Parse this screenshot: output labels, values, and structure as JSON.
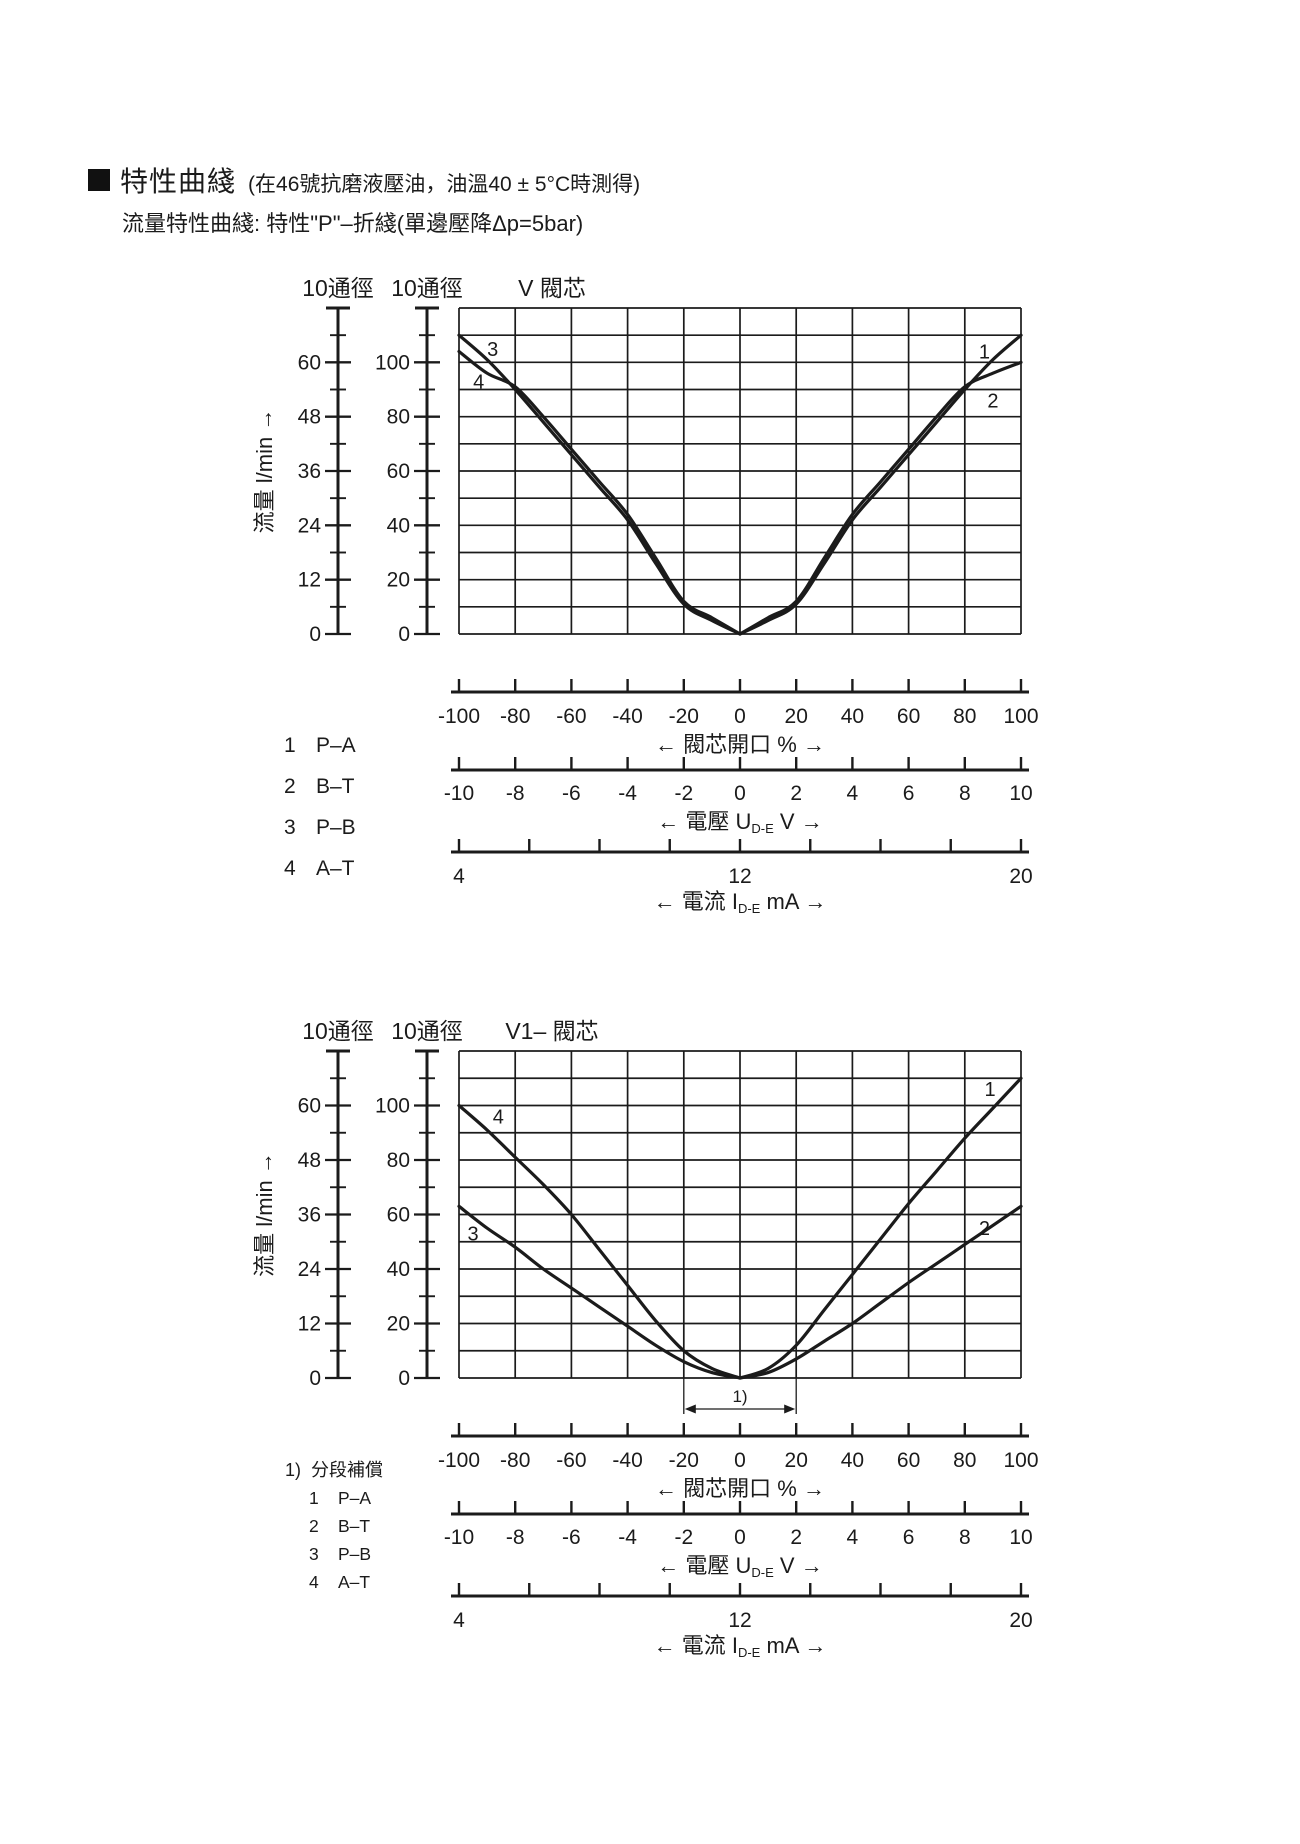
{
  "page": {
    "title": "特性曲綫",
    "title_note": "(在46號抗磨液壓油，油溫40 ± 5°C時測得)",
    "subtitle": "流量特性曲綫: 特性\"P\"–折綫(單邊壓降Δp=5bar)"
  },
  "ink_color": "#1b1b1b",
  "chart_data": [
    {
      "type": "line",
      "title": "V 閥芯",
      "ylabel": "流量 l/min →",
      "scales": [
        {
          "header": "10通徑",
          "max": 60,
          "label_step": 12,
          "minor_step": 6,
          "top": 72,
          "labels": [
            0,
            12,
            24,
            36,
            48,
            60
          ]
        },
        {
          "header": "10通徑",
          "max": 100,
          "label_step": 20,
          "minor_step": 10,
          "top": 120,
          "labels": [
            0,
            20,
            40,
            60,
            80,
            100
          ]
        }
      ],
      "grid": {
        "x_min": -100,
        "x_max": 100,
        "x_step": 20,
        "y_min": 0,
        "y_max": 120,
        "y_step": 10
      },
      "series": [
        {
          "name": "1",
          "route": "P–A",
          "label_at": [
            87,
            104
          ],
          "points": [
            [
              0,
              0
            ],
            [
              10,
              5
            ],
            [
              20,
              11
            ],
            [
              30,
              26
            ],
            [
              40,
              42
            ],
            [
              50,
              54
            ],
            [
              60,
              66
            ],
            [
              70,
              78
            ],
            [
              80,
              90
            ],
            [
              90,
              101
            ],
            [
              100,
              110
            ]
          ]
        },
        {
          "name": "2",
          "route": "B–T",
          "label_at": [
            90,
            86
          ],
          "points": [
            [
              0,
              0
            ],
            [
              10,
              6
            ],
            [
              20,
              12
            ],
            [
              30,
              28
            ],
            [
              40,
              44
            ],
            [
              50,
              56
            ],
            [
              60,
              68
            ],
            [
              70,
              80
            ],
            [
              80,
              91
            ],
            [
              90,
              96
            ],
            [
              100,
              100
            ]
          ]
        },
        {
          "name": "3",
          "route": "P–B",
          "label_at": [
            -88,
            105
          ],
          "points": [
            [
              -100,
              110
            ],
            [
              -90,
              101
            ],
            [
              -80,
              90
            ],
            [
              -70,
              78
            ],
            [
              -60,
              66
            ],
            [
              -50,
              54
            ],
            [
              -40,
              42
            ],
            [
              -30,
              26
            ],
            [
              -20,
              11
            ],
            [
              -10,
              5
            ],
            [
              0,
              0
            ]
          ]
        },
        {
          "name": "4",
          "route": "A–T",
          "label_at": [
            -93,
            93
          ],
          "points": [
            [
              -100,
              104
            ],
            [
              -90,
              96
            ],
            [
              -80,
              91
            ],
            [
              -70,
              80
            ],
            [
              -60,
              68
            ],
            [
              -50,
              56
            ],
            [
              -40,
              44
            ],
            [
              -30,
              28
            ],
            [
              -20,
              12
            ],
            [
              -10,
              6
            ],
            [
              0,
              0
            ]
          ]
        }
      ],
      "axes": [
        {
          "span": [
            -100,
            100
          ],
          "ticks": [
            -100,
            -80,
            -60,
            -40,
            -20,
            0,
            20,
            40,
            60,
            80,
            100
          ],
          "labels": [
            "-100",
            "-80",
            "-60",
            "-40",
            "-20",
            "0",
            "20",
            "40",
            "60",
            "80",
            "100"
          ],
          "title": {
            "pre": "← 閥芯開口 % →",
            "sub": "",
            "post": ""
          }
        },
        {
          "span": [
            -10,
            10
          ],
          "ticks": [
            -10,
            -8,
            -6,
            -4,
            -2,
            0,
            2,
            4,
            6,
            8,
            10
          ],
          "labels": [
            "-10",
            "-8",
            "-6",
            "-4",
            "-2",
            "0",
            "2",
            "4",
            "6",
            "8",
            "10"
          ],
          "title": {
            "pre": "← 電壓 U",
            "sub": "D-E",
            "post": " V →"
          }
        },
        {
          "span": [
            4,
            20
          ],
          "ticks": [
            4,
            6,
            8,
            10,
            12,
            14,
            16,
            18,
            20
          ],
          "labels": [
            "4",
            "",
            "",
            "",
            "12",
            "",
            "",
            "",
            "20"
          ],
          "title": {
            "pre": "← 電流 I",
            "sub": "D-E",
            "post": " mA →"
          }
        }
      ],
      "legend": [
        {
          "num": "1",
          "route": "P–A"
        },
        {
          "num": "2",
          "route": "B–T"
        },
        {
          "num": "3",
          "route": "P–B"
        },
        {
          "num": "4",
          "route": "A–T"
        }
      ]
    },
    {
      "type": "line",
      "title": "V1– 閥芯",
      "ylabel": "流量 l/min →",
      "scales": [
        {
          "header": "10通徑",
          "max": 60,
          "label_step": 12,
          "minor_step": 6,
          "top": 72,
          "labels": [
            0,
            12,
            24,
            36,
            48,
            60
          ]
        },
        {
          "header": "10通徑",
          "max": 100,
          "label_step": 20,
          "minor_step": 10,
          "top": 120,
          "labels": [
            0,
            20,
            40,
            60,
            80,
            100
          ]
        }
      ],
      "grid": {
        "x_min": -100,
        "x_max": 100,
        "x_step": 20,
        "y_min": 0,
        "y_max": 120,
        "y_step": 10
      },
      "series": [
        {
          "name": "1",
          "route": "P–A",
          "label_at": [
            89,
            106
          ],
          "points": [
            [
              0,
              0
            ],
            [
              10,
              3.5
            ],
            [
              20,
              12
            ],
            [
              30,
              25
            ],
            [
              40,
              38
            ],
            [
              50,
              51
            ],
            [
              60,
              64
            ],
            [
              70,
              76
            ],
            [
              80,
              88
            ],
            [
              90,
              99
            ],
            [
              100,
              110
            ]
          ]
        },
        {
          "name": "2",
          "route": "B–T",
          "label_at": [
            87,
            55
          ],
          "points": [
            [
              0,
              0
            ],
            [
              10,
              2
            ],
            [
              20,
              7
            ],
            [
              30,
              13.5
            ],
            [
              40,
              20
            ],
            [
              50,
              27.5
            ],
            [
              60,
              35
            ],
            [
              70,
              42
            ],
            [
              80,
              49
            ],
            [
              90,
              56
            ],
            [
              100,
              63
            ]
          ]
        },
        {
          "name": "3",
          "route": "P–B",
          "label_at": [
            -95,
            53
          ],
          "points": [
            [
              -100,
              63
            ],
            [
              -90,
              55
            ],
            [
              -80,
              48
            ],
            [
              -70,
              40
            ],
            [
              -60,
              33
            ],
            [
              -50,
              26
            ],
            [
              -40,
              19
            ],
            [
              -30,
              12
            ],
            [
              -20,
              6
            ],
            [
              -10,
              2
            ],
            [
              0,
              0
            ]
          ]
        },
        {
          "name": "4",
          "route": "A–T",
          "label_at": [
            -86,
            96
          ],
          "points": [
            [
              -100,
              100
            ],
            [
              -90,
              91
            ],
            [
              -80,
              81
            ],
            [
              -70,
              71
            ],
            [
              -60,
              60
            ],
            [
              -50,
              47
            ],
            [
              -40,
              34
            ],
            [
              -30,
              21
            ],
            [
              -20,
              10
            ],
            [
              -10,
              3.5
            ],
            [
              0,
              0
            ]
          ]
        }
      ],
      "axes": [
        {
          "span": [
            -100,
            100
          ],
          "ticks": [
            -100,
            -80,
            -60,
            -40,
            -20,
            0,
            20,
            40,
            60,
            80,
            100
          ],
          "labels": [
            "-100",
            "-80",
            "-60",
            "-40",
            "-20",
            "0",
            "20",
            "40",
            "60",
            "80",
            "100"
          ],
          "title": {
            "pre": "← 閥芯開口 % →",
            "sub": "",
            "post": ""
          }
        },
        {
          "span": [
            -10,
            10
          ],
          "ticks": [
            -10,
            -8,
            -6,
            -4,
            -2,
            0,
            2,
            4,
            6,
            8,
            10
          ],
          "labels": [
            "-10",
            "-8",
            "-6",
            "-4",
            "-2",
            "0",
            "2",
            "4",
            "6",
            "8",
            "10"
          ],
          "title": {
            "pre": "← 電壓 U",
            "sub": "D-E",
            "post": " V →"
          }
        },
        {
          "span": [
            4,
            20
          ],
          "ticks": [
            4,
            6,
            8,
            10,
            12,
            14,
            16,
            18,
            20
          ],
          "labels": [
            "4",
            "",
            "",
            "",
            "12",
            "",
            "",
            "",
            "20"
          ],
          "title": {
            "pre": "← 電流 I",
            "sub": "D-E",
            "post": " mA →"
          }
        }
      ],
      "footnote": {
        "marker": "1)",
        "text": "分段補償"
      },
      "deadband": {
        "from": -20,
        "to": 20,
        "label": "1)"
      },
      "legend": [
        {
          "num": "1",
          "route": "P–A"
        },
        {
          "num": "2",
          "route": "B–T"
        },
        {
          "num": "3",
          "route": "P–B"
        },
        {
          "num": "4",
          "route": "A–T"
        }
      ]
    }
  ]
}
